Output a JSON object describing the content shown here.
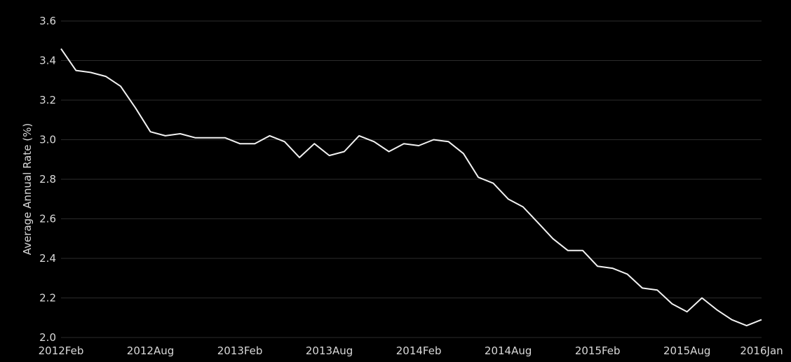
{
  "chart_data": {
    "type": "line",
    "title": "",
    "xlabel": "",
    "ylabel": "Average Annual Rate (%)",
    "ylim": [
      2.0,
      3.6
    ],
    "yticks": [
      "2.0",
      "2.2",
      "2.4",
      "2.6",
      "2.8",
      "3.0",
      "3.2",
      "3.4",
      "3.6"
    ],
    "xticks": [
      "2012Feb",
      "2012Aug",
      "2013Feb",
      "2013Aug",
      "2014Feb",
      "2014Aug",
      "2015Feb",
      "2015Aug",
      "2016Jan"
    ],
    "grid": true,
    "colors": {
      "background": "#000000",
      "line": "#f2f2f2",
      "grid": "#2b2b2b",
      "text": "#d9d9d9"
    },
    "x": [
      "2012Feb",
      "2012Mar",
      "2012Apr",
      "2012May",
      "2012Jun",
      "2012Jul",
      "2012Aug",
      "2012Sep",
      "2012Oct",
      "2012Nov",
      "2012Dec",
      "2013Jan",
      "2013Feb",
      "2013Mar",
      "2013Apr",
      "2013May",
      "2013Jun",
      "2013Jul",
      "2013Aug",
      "2013Sep",
      "2013Oct",
      "2013Nov",
      "2013Dec",
      "2014Jan",
      "2014Feb",
      "2014Mar",
      "2014Apr",
      "2014May",
      "2014Jun",
      "2014Jul",
      "2014Aug",
      "2014Sep",
      "2014Oct",
      "2014Nov",
      "2014Dec",
      "2015Jan",
      "2015Feb",
      "2015Mar",
      "2015Apr",
      "2015May",
      "2015Jun",
      "2015Jul",
      "2015Aug",
      "2015Sep",
      "2015Oct",
      "2015Nov",
      "2015Dec",
      "2016Jan"
    ],
    "series": [
      {
        "values": [
          3.46,
          3.35,
          3.34,
          3.32,
          3.27,
          3.16,
          3.04,
          3.02,
          3.03,
          3.01,
          3.01,
          3.01,
          2.98,
          2.98,
          3.02,
          2.99,
          2.91,
          2.98,
          2.92,
          2.94,
          3.02,
          2.99,
          2.94,
          2.98,
          2.97,
          3.0,
          2.99,
          2.93,
          2.81,
          2.78,
          2.7,
          2.66,
          2.58,
          2.5,
          2.44,
          2.44,
          2.36,
          2.35,
          2.32,
          2.25,
          2.24,
          2.17,
          2.13,
          2.2,
          2.14,
          2.09,
          2.06,
          2.09
        ]
      }
    ]
  }
}
